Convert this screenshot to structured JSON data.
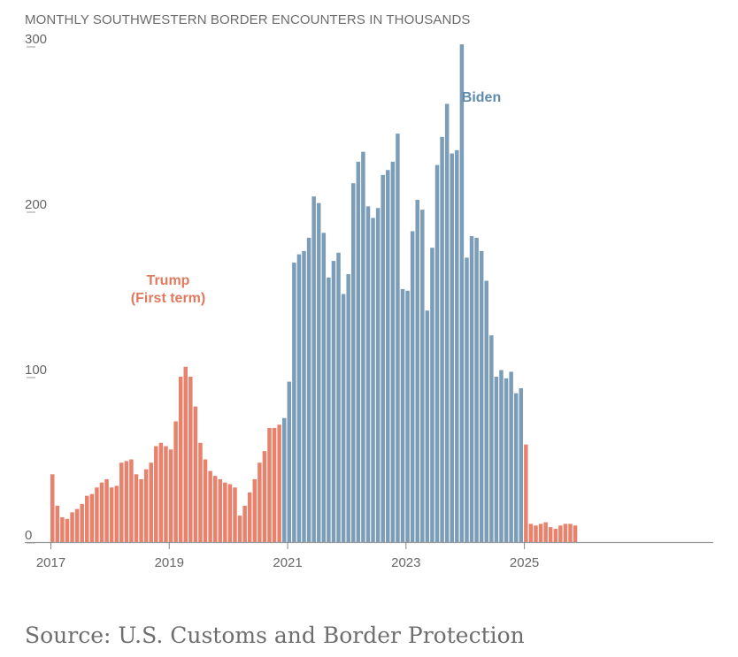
{
  "chart_data": {
    "type": "bar",
    "title": "MONTHLY SOUTHWESTERN BORDER ENCOUNTERS IN THOUSANDS",
    "xlabel": "",
    "ylabel": "",
    "ylim": [
      0,
      300
    ],
    "yticks": [
      {
        "value": 0,
        "label": "0"
      },
      {
        "value": 100,
        "label": "100"
      },
      {
        "value": 200,
        "label": "200"
      },
      {
        "value": 300,
        "label": "300"
      }
    ],
    "xticks": [
      {
        "index": 0,
        "label": "2017"
      },
      {
        "index": 24,
        "label": "2019"
      },
      {
        "index": 48,
        "label": "2021"
      },
      {
        "index": 72,
        "label": "2023"
      },
      {
        "index": 96,
        "label": "2025"
      }
    ],
    "grid": false,
    "start_month": "2017-01",
    "annotations": [
      {
        "text": "Trump",
        "color": "#e07a5f",
        "index": 19
      },
      {
        "text": "(First term)",
        "color": "#e07a5f",
        "index": 19
      },
      {
        "text": "Biden",
        "color": "#5f8bab",
        "index": 70
      }
    ],
    "colors": {
      "trump": "#e8826c",
      "biden": "#7b9db8",
      "axis": "#999999"
    },
    "series": [
      {
        "name": "Trump (First term)",
        "color": "#e8826c",
        "start_index": 0,
        "values": [
          41,
          22,
          15,
          14,
          18,
          20,
          23,
          28,
          29,
          33,
          36,
          38,
          33,
          34,
          48,
          49,
          50,
          41,
          38,
          44,
          48,
          58,
          60,
          58,
          56,
          73,
          100,
          106,
          100,
          82,
          60,
          50,
          43,
          40,
          38,
          36,
          35,
          33,
          16,
          22,
          30,
          38,
          48,
          55,
          69,
          69,
          71
        ]
      },
      {
        "name": "Biden",
        "color": "#7b9db8",
        "start_index": 47,
        "values": [
          75,
          97,
          169,
          174,
          176,
          184,
          209,
          205,
          187,
          160,
          170,
          175,
          150,
          162,
          217,
          230,
          236,
          203,
          196,
          202,
          222,
          225,
          230,
          247,
          153,
          152,
          188,
          207,
          201,
          140,
          178,
          228,
          245,
          265,
          235,
          237,
          301,
          172,
          185,
          184,
          176,
          158,
          125,
          100,
          104,
          99,
          103,
          90,
          93
        ]
      },
      {
        "name": "Trump (Second term)",
        "color": "#e8826c",
        "start_index": 96,
        "values": [
          59,
          11,
          10,
          11,
          12,
          9,
          8,
          10,
          11,
          11,
          10
        ]
      }
    ]
  },
  "source": "Source: U.S. Customs and Border Protection"
}
